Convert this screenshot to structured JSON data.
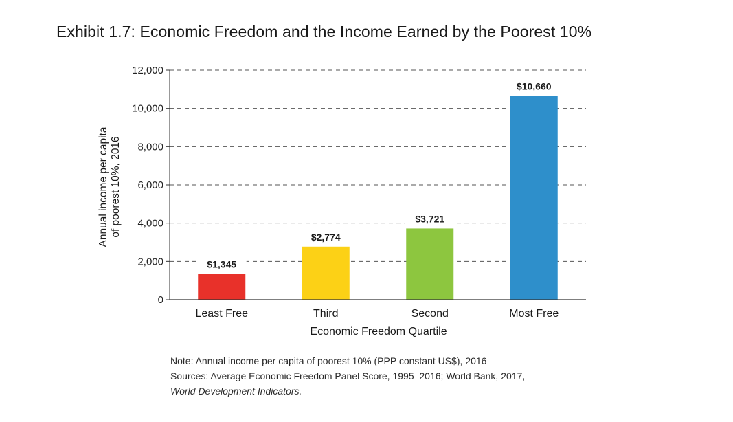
{
  "chart_data": {
    "type": "bar",
    "title": "Exhibit 1.7: Economic Freedom and the Income Earned by the Poorest 10%",
    "xlabel": "Economic Freedom Quartile",
    "ylabel_lines": [
      "Annual income per capita",
      "of poorest 10%, 2016"
    ],
    "categories": [
      "Least Free",
      "Third",
      "Second",
      "Most Free"
    ],
    "values": [
      1345,
      2774,
      3721,
      10660
    ],
    "value_labels": [
      "$1,345",
      "$2,774",
      "$3,721",
      "$10,660"
    ],
    "colors": [
      "#e8312a",
      "#fcd116",
      "#8dc63f",
      "#2e8fcb"
    ],
    "ylim": [
      0,
      12000
    ],
    "yticks": [
      0,
      2000,
      4000,
      6000,
      8000,
      10000,
      12000
    ],
    "ytick_labels": [
      "0",
      "2,000",
      "4,000",
      "6,000",
      "8,000",
      "10,000",
      "12,000"
    ],
    "grid": "dashed horizontal"
  },
  "notes": {
    "line1": "Note: Annual income per capita of poorest 10% (PPP constant US$), 2016",
    "line2": "Sources: Average Economic Freedom Panel Score, 1995–2016; World Bank, 2017,",
    "line3": "World Development Indicators."
  }
}
